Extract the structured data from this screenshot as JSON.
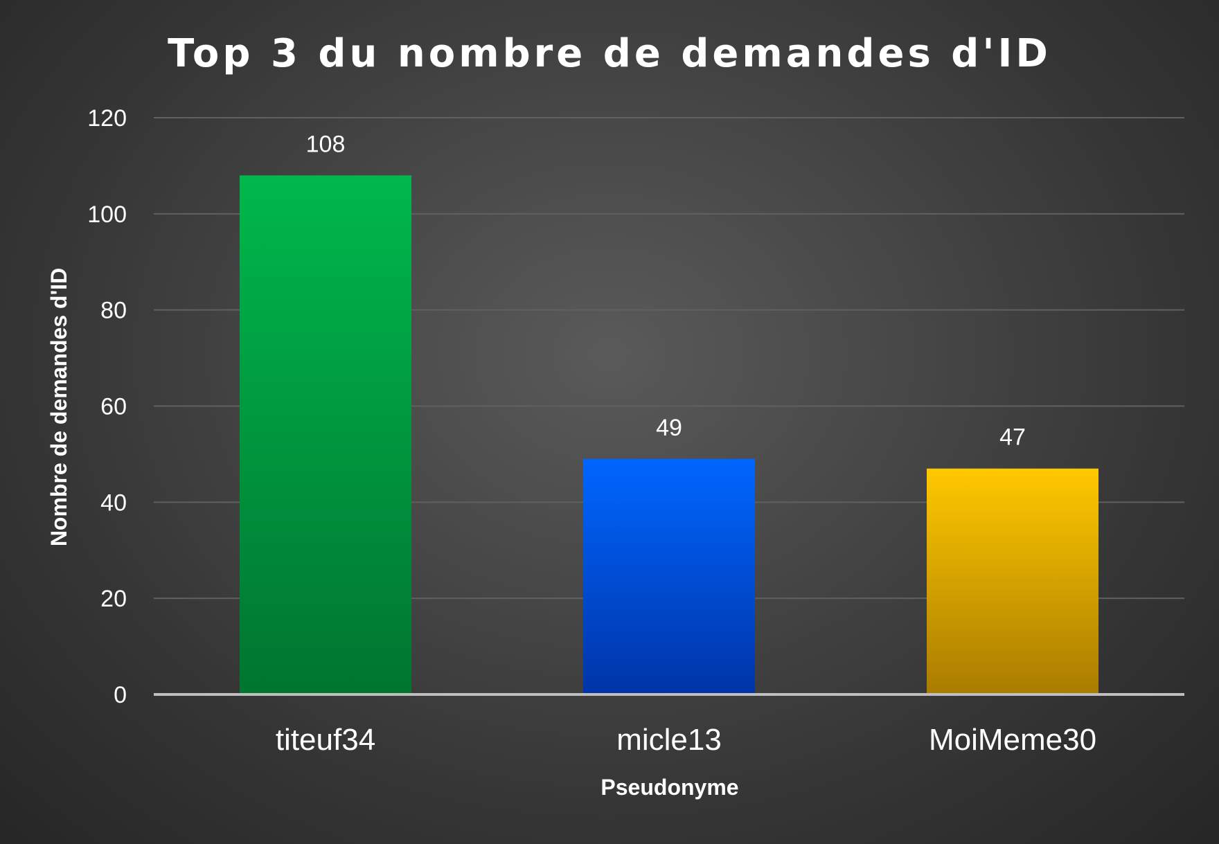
{
  "chart_data": {
    "type": "bar",
    "title": "Top 3 du nombre de demandes d'ID",
    "xlabel": "Pseudonyme",
    "ylabel": "Nombre de demandes d'ID",
    "categories": [
      "titeuf34",
      "micle13",
      "MoiMeme30"
    ],
    "values": [
      108,
      49,
      47
    ],
    "data_labels": [
      "108",
      "49",
      "47"
    ],
    "bar_colors": [
      {
        "top": "#00b84c",
        "bottom": "#007530"
      },
      {
        "top": "#0066ff",
        "bottom": "#0034a8"
      },
      {
        "top": "#ffc800",
        "bottom": "#a97c00"
      }
    ],
    "ylim": [
      0,
      120
    ],
    "yticks": [
      "0",
      "20",
      "40",
      "60",
      "80",
      "100",
      "120"
    ],
    "ytick_values": [
      0,
      20,
      40,
      60,
      80,
      100,
      120
    ],
    "grid": true,
    "legend": "none"
  },
  "colors": {
    "gridline": "#606060",
    "baseline": "#bfbfbf",
    "text": "#ffffff"
  }
}
